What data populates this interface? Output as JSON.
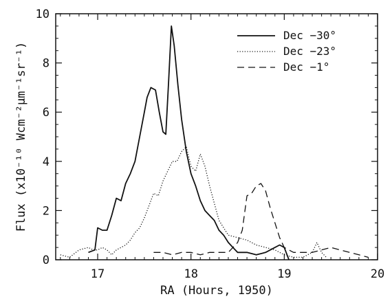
{
  "chart_data": {
    "type": "line",
    "xlabel": "RA (Hours, 1950)",
    "ylabel": "Flux (x10⁻¹⁰ Wcm⁻²μm⁻¹sr⁻¹)",
    "xlim": [
      16.55,
      20.0
    ],
    "ylim": [
      0,
      10
    ],
    "xticks": [
      "17",
      "18",
      "19",
      "20"
    ],
    "yticks": [
      "0",
      "2",
      "4",
      "6",
      "8",
      "10"
    ],
    "legend_position": "top-right",
    "series": [
      {
        "name": "Dec −30°",
        "style": "solid",
        "x": [
          16.9,
          16.97,
          17.0,
          17.05,
          17.1,
          17.15,
          17.2,
          17.25,
          17.3,
          17.35,
          17.4,
          17.45,
          17.5,
          17.53,
          17.57,
          17.62,
          17.66,
          17.7,
          17.73,
          17.76,
          17.79,
          17.82,
          17.86,
          17.9,
          17.95,
          18.0,
          18.05,
          18.1,
          18.15,
          18.2,
          18.25,
          18.3,
          18.35,
          18.4,
          18.45,
          18.5,
          18.55,
          18.6,
          18.7,
          18.8,
          18.85,
          18.9,
          18.95,
          19.0,
          19.05
        ],
        "y": [
          0.3,
          0.4,
          1.3,
          1.2,
          1.2,
          1.8,
          2.5,
          2.4,
          3.1,
          3.5,
          4.0,
          5.0,
          6.0,
          6.6,
          7.0,
          6.9,
          6.0,
          5.2,
          5.1,
          7.2,
          9.5,
          8.7,
          7.1,
          5.7,
          4.4,
          3.5,
          3.0,
          2.4,
          2.0,
          1.8,
          1.6,
          1.2,
          1.0,
          0.7,
          0.5,
          0.3,
          0.3,
          0.3,
          0.2,
          0.3,
          0.4,
          0.5,
          0.6,
          0.5,
          0.0
        ]
      },
      {
        "name": "Dec −23°",
        "style": "dotted",
        "x": [
          16.6,
          16.7,
          16.8,
          16.9,
          16.95,
          17.0,
          17.05,
          17.1,
          17.15,
          17.2,
          17.25,
          17.3,
          17.35,
          17.4,
          17.45,
          17.5,
          17.55,
          17.6,
          17.65,
          17.7,
          17.75,
          17.8,
          17.85,
          17.9,
          17.95,
          18.0,
          18.05,
          18.1,
          18.15,
          18.2,
          18.25,
          18.3,
          18.4,
          18.5,
          18.6,
          18.7,
          18.8,
          18.9,
          19.0,
          19.1,
          19.2,
          19.3,
          19.35,
          19.4,
          19.45
        ],
        "y": [
          0.2,
          0.1,
          0.4,
          0.5,
          0.4,
          0.4,
          0.5,
          0.4,
          0.2,
          0.4,
          0.5,
          0.6,
          0.8,
          1.1,
          1.3,
          1.7,
          2.2,
          2.7,
          2.6,
          3.2,
          3.6,
          4.0,
          4.0,
          4.4,
          4.6,
          3.8,
          3.6,
          4.3,
          3.8,
          3.0,
          2.3,
          1.6,
          1.0,
          0.9,
          0.8,
          0.6,
          0.5,
          0.4,
          0.2,
          0.1,
          0.1,
          0.3,
          0.7,
          0.3,
          0.1
        ]
      },
      {
        "name": "Dec −1°",
        "style": "dashed",
        "x": [
          17.6,
          17.7,
          17.8,
          17.9,
          18.0,
          18.1,
          18.2,
          18.3,
          18.4,
          18.45,
          18.5,
          18.55,
          18.6,
          18.65,
          18.7,
          18.75,
          18.8,
          18.85,
          18.9,
          18.95,
          19.0,
          19.05,
          19.1,
          19.2,
          19.3,
          19.4,
          19.5,
          19.6,
          19.7,
          19.8,
          19.9
        ],
        "y": [
          0.3,
          0.3,
          0.2,
          0.3,
          0.3,
          0.2,
          0.3,
          0.3,
          0.3,
          0.5,
          0.7,
          1.2,
          2.6,
          2.7,
          3.0,
          3.1,
          2.8,
          2.1,
          1.5,
          0.9,
          0.5,
          0.4,
          0.3,
          0.3,
          0.3,
          0.4,
          0.5,
          0.4,
          0.3,
          0.2,
          0.1
        ]
      }
    ]
  }
}
